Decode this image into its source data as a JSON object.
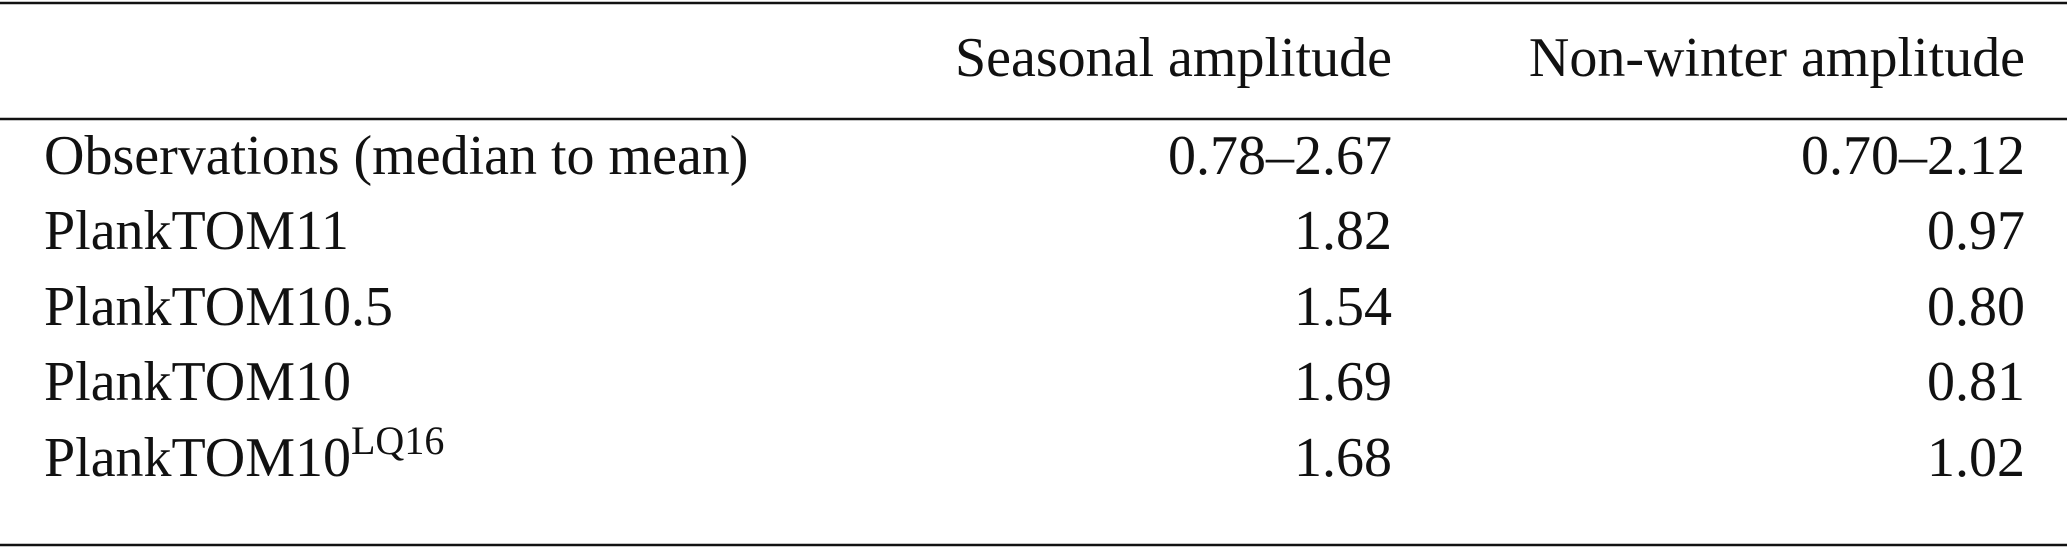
{
  "table": {
    "header": [
      "",
      "Seasonal amplitude",
      "Non-winter amplitude"
    ],
    "rows": [
      {
        "label": "Observations (median to mean)",
        "cells": [
          "0.78–2.67",
          "0.70–2.12"
        ]
      },
      {
        "label": "PlankTOM11",
        "cells": [
          "1.82",
          "0.97"
        ]
      },
      {
        "label": "PlankTOM10.5",
        "cells": [
          "1.54",
          "0.80"
        ]
      },
      {
        "label": "PlankTOM10",
        "cells": [
          "1.69",
          "0.81"
        ]
      },
      {
        "label": "PlankTOM10",
        "superscript": "LQ16",
        "cells": [
          "1.68",
          "1.02"
        ]
      }
    ]
  }
}
